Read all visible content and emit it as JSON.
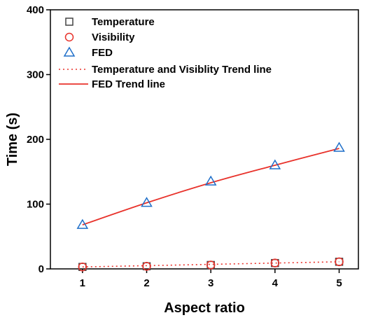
{
  "chart_data": {
    "type": "scatter",
    "xlabel": "Aspect ratio",
    "ylabel": "Time (s)",
    "xlim": [
      0.5,
      5.3
    ],
    "ylim": [
      0,
      400
    ],
    "xticks": [
      1,
      2,
      3,
      4,
      5
    ],
    "yticks": [
      0,
      100,
      200,
      300,
      400
    ],
    "xtick_labels": [
      "1",
      "2",
      "3",
      "4",
      "5"
    ],
    "ytick_labels": [
      "0",
      "100",
      "200",
      "300",
      "400"
    ],
    "grid": false,
    "legend_position": "top-left",
    "series": [
      {
        "name": "Temperature",
        "kind": "points",
        "marker": "square",
        "color": "#444444",
        "x": [
          1,
          2,
          3,
          4,
          5
        ],
        "y": [
          3,
          4,
          6,
          9,
          11
        ]
      },
      {
        "name": "Visibility",
        "kind": "points",
        "marker": "circle",
        "color": "#e8322b",
        "x": [
          1,
          2,
          3,
          4,
          5
        ],
        "y": [
          3,
          4,
          6,
          9,
          11
        ]
      },
      {
        "name": "FED",
        "kind": "points",
        "marker": "triangle",
        "color": "#1f6fc9",
        "x": [
          1,
          2,
          3,
          4,
          5
        ],
        "y": [
          68,
          102,
          135,
          160,
          187
        ]
      },
      {
        "name": "Temperature and Visiblity Trend line",
        "kind": "line",
        "style": "dotted",
        "color": "#e8322b",
        "x": [
          1,
          2,
          3,
          4,
          5
        ],
        "y": [
          3,
          5,
          7,
          9,
          11
        ]
      },
      {
        "name": "FED Trend line",
        "kind": "line",
        "style": "solid",
        "color": "#e8322b",
        "x": [
          1,
          2,
          3,
          4,
          5
        ],
        "y": [
          68,
          102,
          133,
          160,
          186
        ]
      }
    ]
  }
}
